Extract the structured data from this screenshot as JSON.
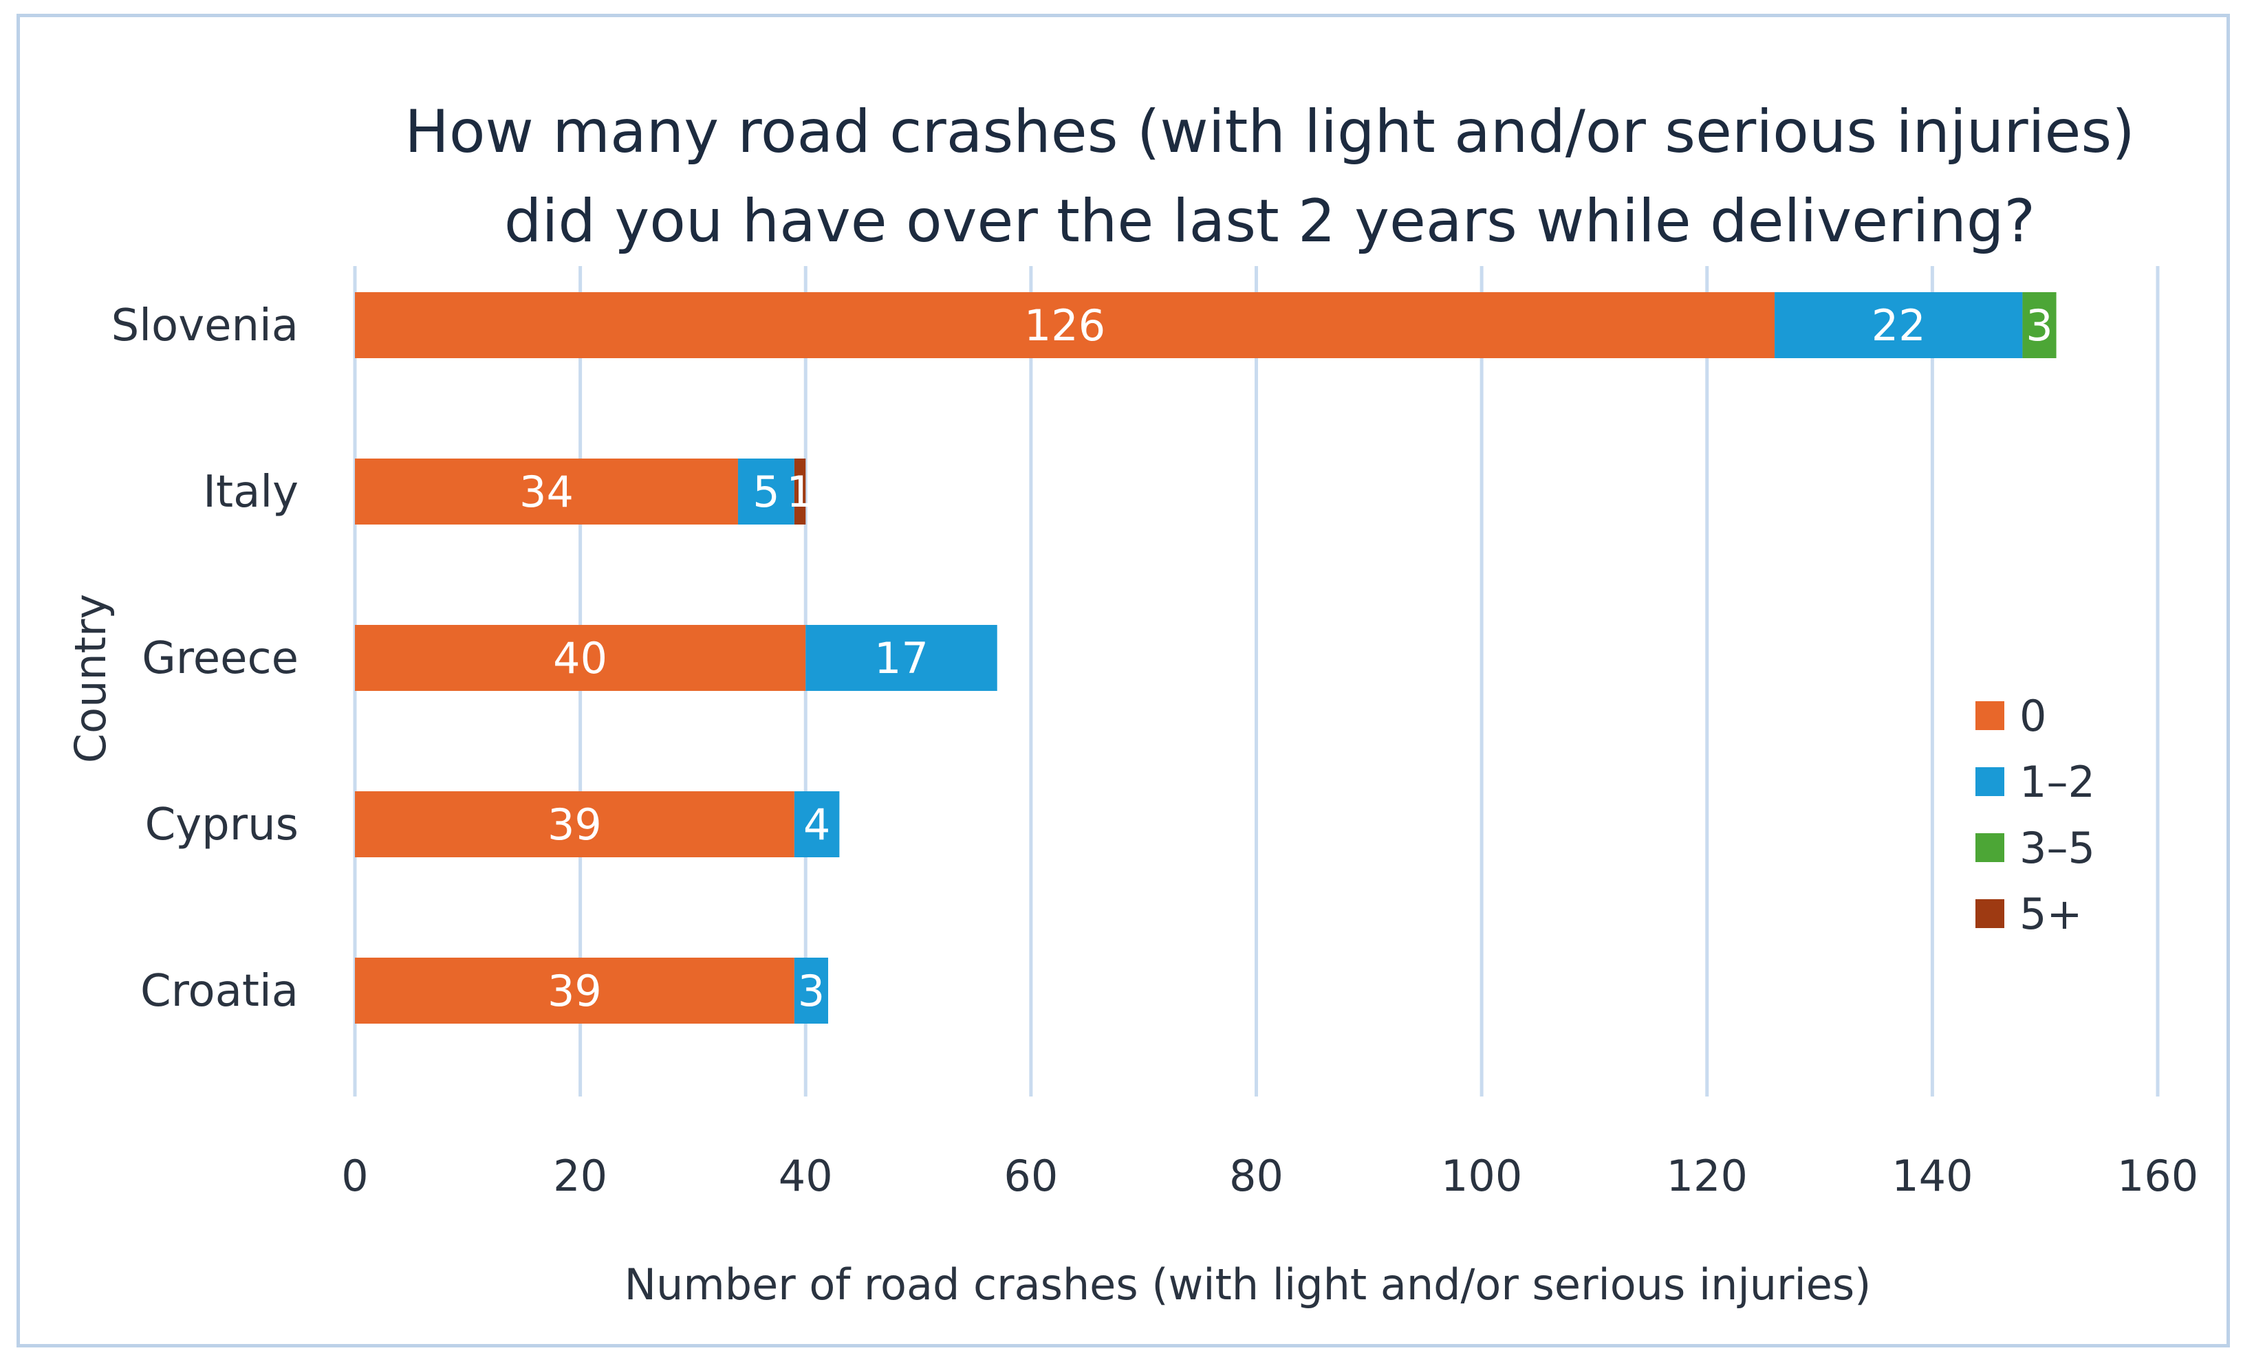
{
  "chart_data": {
    "type": "bar",
    "orientation": "horizontal",
    "stacked": true,
    "title": [
      "How many road crashes (with light and/or serious injuries)",
      "did you have over the last 2 years while delivering?"
    ],
    "xlabel": "Number of road crashes (with light and/or serious injuries)",
    "ylabel": "Country",
    "xlim": [
      0,
      160
    ],
    "xticks": [
      0,
      20,
      40,
      60,
      80,
      100,
      120,
      140,
      160
    ],
    "grid": true,
    "legend_position": "right",
    "categories": [
      "Slovenia",
      "Italy",
      "Greece",
      "Cyprus",
      "Croatia"
    ],
    "series": [
      {
        "name": "0",
        "color": "#e8672a",
        "values": [
          126,
          34,
          40,
          39,
          39
        ]
      },
      {
        "name": "1–2",
        "color": "#1a9ad6",
        "values": [
          22,
          5,
          17,
          4,
          3
        ]
      },
      {
        "name": "3–5",
        "color": "#4ca636",
        "values": [
          3,
          0,
          0,
          0,
          0
        ]
      },
      {
        "name": "5+",
        "color": "#9e3a12",
        "values": [
          0,
          1,
          0,
          0,
          0
        ]
      }
    ]
  }
}
